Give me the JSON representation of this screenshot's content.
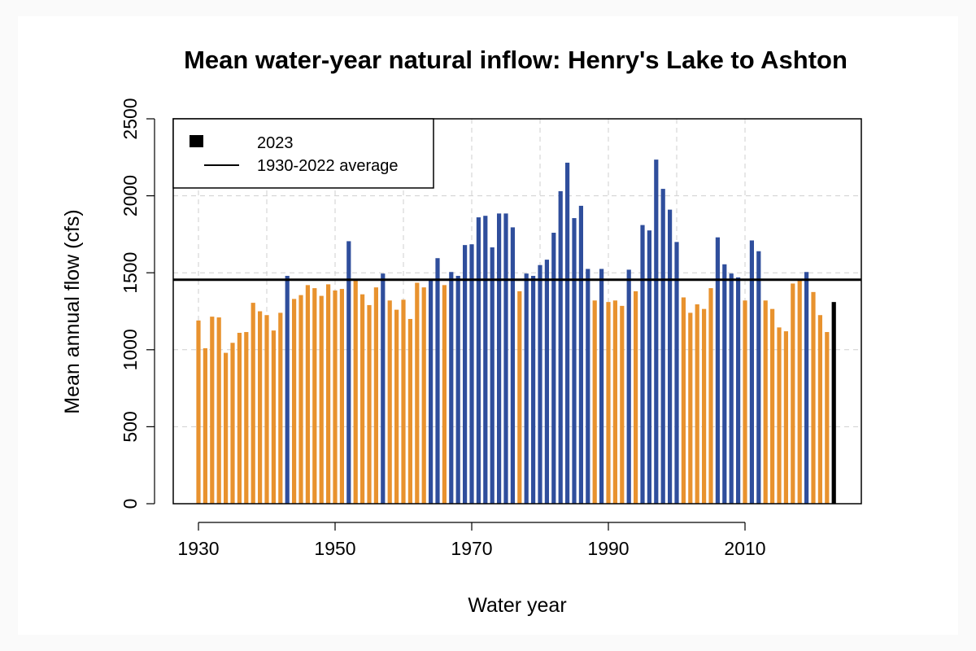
{
  "chart_data": {
    "type": "bar",
    "title": "Mean water-year natural inflow: Henry's Lake to Ashton",
    "xlabel": "Water year",
    "ylabel": "Mean annual flow (cfs)",
    "xlim": [
      1930,
      2023
    ],
    "ylim": [
      0,
      2500
    ],
    "x_ticks": [
      "1930",
      "1950",
      "1970",
      "1990",
      "2010"
    ],
    "y_ticks": [
      "0",
      "500",
      "1000",
      "1500",
      "2000",
      "2500"
    ],
    "grid": true,
    "legend": {
      "position": "top-left",
      "entries": [
        "2023",
        "1930-2022 average"
      ]
    },
    "average_line": 1455,
    "colors": {
      "below_average": "#e8922e",
      "above_average": "#2f4e9c",
      "current_year": "#000000",
      "average_line": "#000000"
    },
    "years": [
      1930,
      1931,
      1932,
      1933,
      1934,
      1935,
      1936,
      1937,
      1938,
      1939,
      1940,
      1941,
      1942,
      1943,
      1944,
      1945,
      1946,
      1947,
      1948,
      1949,
      1950,
      1951,
      1952,
      1953,
      1954,
      1955,
      1956,
      1957,
      1958,
      1959,
      1960,
      1961,
      1962,
      1963,
      1964,
      1965,
      1966,
      1967,
      1968,
      1969,
      1970,
      1971,
      1972,
      1973,
      1974,
      1975,
      1976,
      1977,
      1978,
      1979,
      1980,
      1981,
      1982,
      1983,
      1984,
      1985,
      1986,
      1987,
      1988,
      1989,
      1990,
      1991,
      1992,
      1993,
      1994,
      1995,
      1996,
      1997,
      1998,
      1999,
      2000,
      2001,
      2002,
      2003,
      2004,
      2005,
      2006,
      2007,
      2008,
      2009,
      2010,
      2011,
      2012,
      2013,
      2014,
      2015,
      2016,
      2017,
      2018,
      2019,
      2020,
      2021,
      2022,
      2023
    ],
    "values": [
      1190,
      1010,
      1215,
      1210,
      980,
      1045,
      1110,
      1115,
      1305,
      1250,
      1225,
      1125,
      1240,
      1480,
      1330,
      1355,
      1420,
      1400,
      1350,
      1425,
      1385,
      1395,
      1705,
      1450,
      1360,
      1290,
      1405,
      1495,
      1320,
      1260,
      1325,
      1200,
      1435,
      1405,
      1460,
      1595,
      1420,
      1505,
      1480,
      1680,
      1685,
      1860,
      1870,
      1665,
      1885,
      1885,
      1795,
      1380,
      1495,
      1480,
      1550,
      1585,
      1760,
      2030,
      2215,
      1855,
      1935,
      1525,
      1320,
      1525,
      1310,
      1320,
      1285,
      1520,
      1380,
      1810,
      1775,
      2235,
      2045,
      1910,
      1700,
      1340,
      1240,
      1295,
      1265,
      1400,
      1730,
      1555,
      1495,
      1470,
      1320,
      1710,
      1640,
      1320,
      1265,
      1145,
      1120,
      1430,
      1450,
      1505,
      1375,
      1225,
      1115,
      1310
    ]
  }
}
